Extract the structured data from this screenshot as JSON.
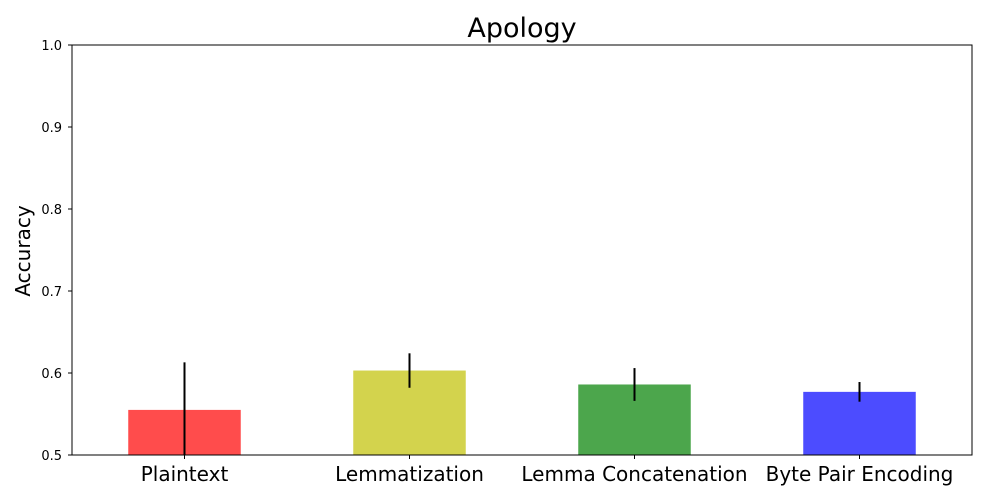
{
  "chart_data": {
    "type": "bar",
    "title": "Apology",
    "xlabel": "",
    "ylabel": "Accuracy",
    "categories": [
      "Plaintext",
      "Lemmatization",
      "Lemma Concatenation",
      "Byte Pair Encoding"
    ],
    "values": [
      0.555,
      0.603,
      0.586,
      0.577
    ],
    "errors": [
      0.058,
      0.021,
      0.02,
      0.012
    ],
    "colors": [
      "#ff4c4c",
      "#d3d34d",
      "#4ca64c",
      "#4c4cff"
    ],
    "ylim": [
      0.5,
      1.0
    ],
    "yticks": [
      "0.5",
      "0.6",
      "0.7",
      "0.8",
      "0.9",
      "1.0"
    ],
    "grid": false,
    "legend": "none"
  }
}
